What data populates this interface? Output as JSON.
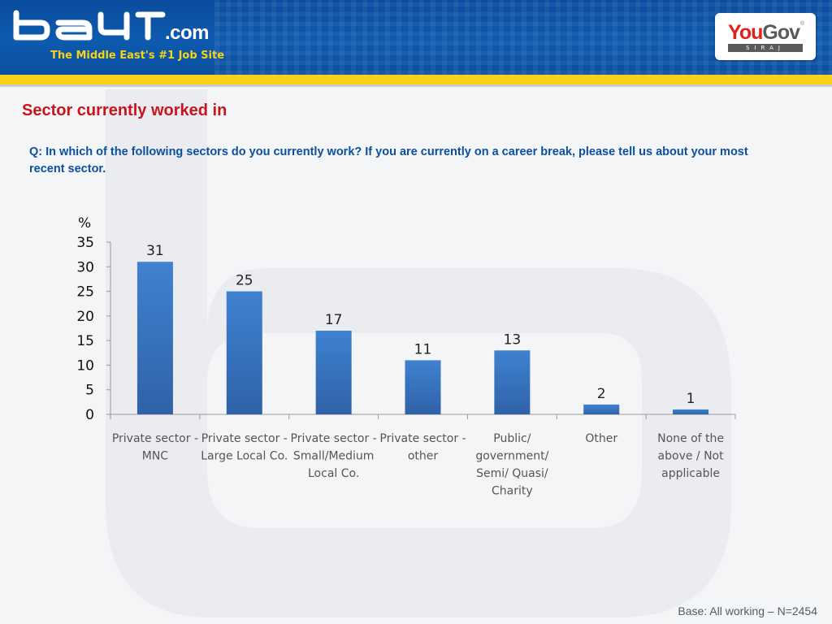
{
  "header": {
    "logo_com": ".com",
    "tagline": "The Middle East's #1 Job Site",
    "partner_you": "You",
    "partner_gov": "Gov",
    "partner_reg": "®",
    "partner_sub": "SIRAJ"
  },
  "page": {
    "title": "Sector currently worked in",
    "question": "Q: In which of the following sectors do you currently work? If you are currently on a career break, please tell us about your most recent sector.",
    "footnote": "Base: All  working – N=2454"
  },
  "colors": {
    "bar": "#3a78c4",
    "title": "#c8141c",
    "question": "#0b4f9f",
    "header": "#0d5aae",
    "stripe": "#f7d21a"
  },
  "chart_data": {
    "type": "bar",
    "unit_label": "%",
    "categories": [
      [
        "Private sector -",
        "MNC"
      ],
      [
        "Private sector -",
        "Large Local Co."
      ],
      [
        "Private sector -",
        "Small/Medium",
        "Local Co."
      ],
      [
        "Private sector -",
        "other"
      ],
      [
        "Public/",
        "government/",
        "Semi/ Quasi/",
        "Charity"
      ],
      [
        "Other"
      ],
      [
        "None of the",
        "above / Not",
        "applicable"
      ]
    ],
    "values": [
      31,
      25,
      17,
      11,
      13,
      2,
      1
    ],
    "ylim": [
      0,
      35
    ],
    "yticks": [
      0,
      5,
      10,
      15,
      20,
      25,
      30,
      35
    ],
    "data_labels": true,
    "grid": false
  }
}
